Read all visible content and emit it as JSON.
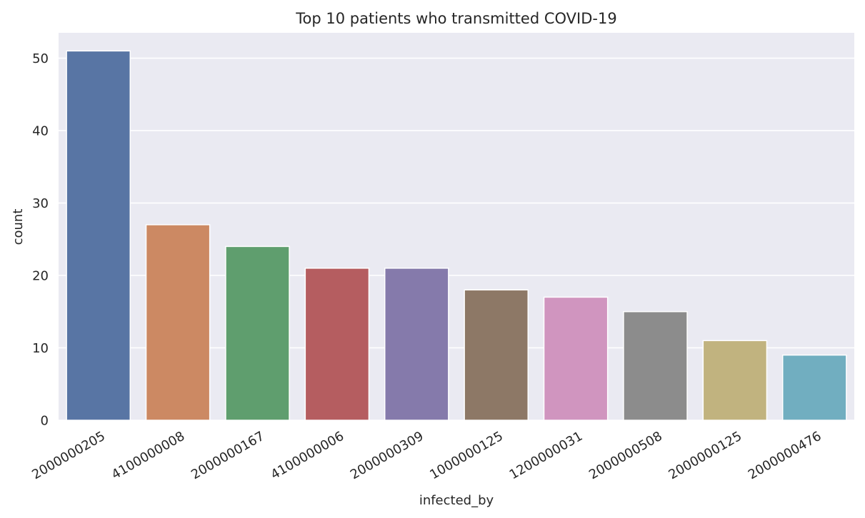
{
  "chart_data": {
    "type": "bar",
    "title": "Top 10 patients who transmitted COVID-19",
    "xlabel": "infected_by",
    "ylabel": "count",
    "categories": [
      "2000000205",
      "4100000008",
      "2000000167",
      "4100000006",
      "2000000309",
      "1000000125",
      "1200000031",
      "2000000508",
      "2000000125",
      "2000000476"
    ],
    "values": [
      51,
      27,
      24,
      21,
      21,
      18,
      17,
      15,
      11,
      9
    ],
    "colors": [
      "#5875a4",
      "#cc8963",
      "#5f9e6e",
      "#b55d60",
      "#857aab",
      "#8d7866",
      "#d095bf",
      "#8c8c8c",
      "#c1b37f",
      "#71aec0"
    ],
    "ylim": [
      0,
      53.5
    ],
    "yticks": [
      0,
      10,
      20,
      30,
      40,
      50
    ],
    "grid": true,
    "background": "#eaeaf2",
    "legend": "none"
  }
}
